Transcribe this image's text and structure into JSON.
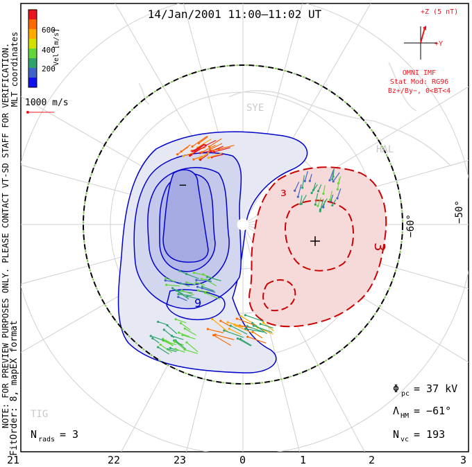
{
  "title": "14/Jan/2001 11:00–11:02 UT",
  "colorbar": {
    "label": "Vel [m/s]",
    "ticks": [
      "600",
      "400",
      "200"
    ],
    "colors": [
      "#e8141e",
      "#ff6a00",
      "#ffaa00",
      "#d4e000",
      "#63d63a",
      "#2ea36e",
      "#3f63c8",
      "#1010ee"
    ]
  },
  "coords_label": "MLT coordinates",
  "scale_vector_label": "1000 m/s",
  "imf": {
    "z_label": "+Z (5 nT)",
    "y_label": "+Y",
    "source": "OMNI IMF",
    "stat_mod": "Stat Mod: RG96",
    "condition": "Bz+/By−, 0<BT<4"
  },
  "sites": [
    "SYE",
    "HAL",
    "TIG"
  ],
  "latitude_labels": [
    "−60°",
    "−50°"
  ],
  "mlt_labels": [
    "21",
    "22",
    "23",
    "0",
    "1",
    "2",
    "3"
  ],
  "contour_labels": {
    "neg_top": "−",
    "neg_mid": "9",
    "pos_top": "³",
    "pos_right": "3"
  },
  "watermark": "NOTE: FOR PREVIEW PURPOSES ONLY. PLEASE CONTACT VT-SD STAFF FOR VERIFICATION.",
  "fit_order": "FitOrder: 8, mapEX format",
  "stats": {
    "phi_pc": "Φ",
    "phi_pc_sub": "pc",
    "phi_pc_value": "= 37 kV",
    "lambda_hm": "Λ",
    "lambda_hm_sub": "HM",
    "lambda_hm_value": "= −61°",
    "n_vc": "N",
    "n_vc_sub": "vc",
    "n_vc_value": "= 193",
    "n_rads": "N",
    "n_rads_sub": "rads",
    "n_rads_value": "= 3"
  },
  "vector_groups": [
    {
      "name": "dusk-top",
      "color_mix": [
        "#e8141e",
        "#ff6a00",
        "#ffaa00"
      ]
    },
    {
      "name": "dawn-top",
      "color_mix": [
        "#63d63a",
        "#2ea36e",
        "#3f63c8"
      ]
    },
    {
      "name": "dusk-lower",
      "color_mix": [
        "#63d63a",
        "#2ea36e",
        "#3f63c8"
      ]
    },
    {
      "name": "throat",
      "color_mix": [
        "#ffaa00",
        "#ff6a00",
        "#2ea36e"
      ]
    },
    {
      "name": "dusk-bottom",
      "color_mix": [
        "#63d63a",
        "#2ea36e"
      ]
    }
  ]
}
